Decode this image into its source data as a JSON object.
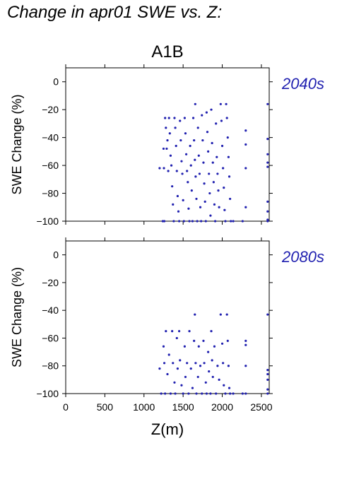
{
  "page": {
    "title": "Change in apr01 SWE vs. Z:"
  },
  "style": {
    "point_color": "#2121b0",
    "label_color": "#2121b0"
  },
  "chart_data": [
    {
      "type": "scatter",
      "scenario": "A1B",
      "period": "2040s",
      "xlabel": "",
      "ylabel": "SWE Change (%)",
      "xlim": [
        0,
        2600
      ],
      "ylim": [
        -100,
        10
      ],
      "x_ticks": [],
      "y_ticks": [
        0,
        -20,
        -40,
        -60,
        -80,
        -100
      ],
      "points": [
        [
          1200,
          -62
        ],
        [
          1240,
          -100
        ],
        [
          1250,
          -48
        ],
        [
          1255,
          -62
        ],
        [
          1260,
          -100
        ],
        [
          1270,
          -26
        ],
        [
          1280,
          -33
        ],
        [
          1290,
          -48
        ],
        [
          1300,
          -42
        ],
        [
          1310,
          -64
        ],
        [
          1320,
          -26
        ],
        [
          1330,
          -37
        ],
        [
          1340,
          -53
        ],
        [
          1350,
          -60
        ],
        [
          1360,
          -75
        ],
        [
          1370,
          -88
        ],
        [
          1380,
          -100
        ],
        [
          1390,
          -26
        ],
        [
          1400,
          -33
        ],
        [
          1410,
          -46
        ],
        [
          1420,
          -64
        ],
        [
          1430,
          -82
        ],
        [
          1440,
          -93
        ],
        [
          1450,
          -100
        ],
        [
          1460,
          -28
        ],
        [
          1470,
          -42
        ],
        [
          1480,
          -57
        ],
        [
          1490,
          -66
        ],
        [
          1500,
          -85
        ],
        [
          1510,
          -100
        ],
        [
          1520,
          -26
        ],
        [
          1530,
          -37
        ],
        [
          1540,
          -52
        ],
        [
          1550,
          -64
        ],
        [
          1560,
          -72
        ],
        [
          1570,
          -91
        ],
        [
          1580,
          -100
        ],
        [
          1590,
          -46
        ],
        [
          1600,
          -60
        ],
        [
          1610,
          -78
        ],
        [
          1620,
          -100
        ],
        [
          1630,
          -26
        ],
        [
          1640,
          -42
        ],
        [
          1650,
          -56
        ],
        [
          1655,
          -16
        ],
        [
          1660,
          -68
        ],
        [
          1670,
          -84
        ],
        [
          1680,
          -100
        ],
        [
          1690,
          -33
        ],
        [
          1700,
          -53
        ],
        [
          1710,
          -66
        ],
        [
          1720,
          -90
        ],
        [
          1730,
          -100
        ],
        [
          1740,
          -24
        ],
        [
          1750,
          -42
        ],
        [
          1760,
          -58
        ],
        [
          1770,
          -73
        ],
        [
          1780,
          -86
        ],
        [
          1790,
          -100
        ],
        [
          1800,
          -22
        ],
        [
          1810,
          -36
        ],
        [
          1820,
          -50
        ],
        [
          1830,
          -66
        ],
        [
          1840,
          -80
        ],
        [
          1850,
          -96
        ],
        [
          1860,
          -20
        ],
        [
          1870,
          -44
        ],
        [
          1880,
          -58
        ],
        [
          1890,
          -72
        ],
        [
          1900,
          -88
        ],
        [
          1910,
          -100
        ],
        [
          1920,
          -30
        ],
        [
          1930,
          -54
        ],
        [
          1940,
          -66
        ],
        [
          1950,
          -78
        ],
        [
          1960,
          -90
        ],
        [
          1980,
          -16
        ],
        [
          1990,
          -28
        ],
        [
          2000,
          -46
        ],
        [
          2010,
          -62
        ],
        [
          2020,
          -76
        ],
        [
          2030,
          -92
        ],
        [
          2040,
          -100
        ],
        [
          2050,
          -16
        ],
        [
          2060,
          -26
        ],
        [
          2070,
          -40
        ],
        [
          2080,
          -54
        ],
        [
          2090,
          -68
        ],
        [
          2100,
          -84
        ],
        [
          2110,
          -100
        ],
        [
          2140,
          -100
        ],
        [
          2260,
          -100
        ],
        [
          2300,
          -35
        ],
        [
          2300,
          -45
        ],
        [
          2300,
          -62
        ],
        [
          2300,
          -90
        ],
        [
          2580,
          -16
        ],
        [
          2580,
          -41
        ],
        [
          2580,
          -52
        ],
        [
          2580,
          -58
        ],
        [
          2580,
          -61
        ],
        [
          2580,
          -86
        ],
        [
          2580,
          -93
        ],
        [
          2580,
          -99
        ],
        [
          2580,
          -100
        ]
      ]
    },
    {
      "type": "scatter",
      "scenario": "",
      "period": "2080s",
      "xlabel": "Z(m)",
      "ylabel": "SWE Change (%)",
      "xlim": [
        0,
        2600
      ],
      "ylim": [
        -100,
        10
      ],
      "x_ticks": [
        0,
        500,
        1000,
        1500,
        2000,
        2500
      ],
      "y_ticks": [
        0,
        -20,
        -40,
        -60,
        -80,
        -100
      ],
      "points": [
        [
          1200,
          -82
        ],
        [
          1220,
          -100
        ],
        [
          1250,
          -66
        ],
        [
          1260,
          -78
        ],
        [
          1270,
          -100
        ],
        [
          1280,
          -55
        ],
        [
          1300,
          -86
        ],
        [
          1320,
          -72
        ],
        [
          1340,
          -100
        ],
        [
          1360,
          -55
        ],
        [
          1370,
          -78
        ],
        [
          1390,
          -92
        ],
        [
          1400,
          -100
        ],
        [
          1420,
          -60
        ],
        [
          1430,
          -82
        ],
        [
          1450,
          -55
        ],
        [
          1460,
          -76
        ],
        [
          1480,
          -94
        ],
        [
          1500,
          -100
        ],
        [
          1520,
          -66
        ],
        [
          1530,
          -88
        ],
        [
          1550,
          -78
        ],
        [
          1570,
          -100
        ],
        [
          1580,
          -55
        ],
        [
          1600,
          -82
        ],
        [
          1620,
          -96
        ],
        [
          1640,
          -62
        ],
        [
          1650,
          -43
        ],
        [
          1660,
          -78
        ],
        [
          1670,
          -100
        ],
        [
          1690,
          -88
        ],
        [
          1700,
          -66
        ],
        [
          1720,
          -80
        ],
        [
          1740,
          -100
        ],
        [
          1760,
          -62
        ],
        [
          1770,
          -78
        ],
        [
          1790,
          -92
        ],
        [
          1800,
          -100
        ],
        [
          1820,
          -70
        ],
        [
          1830,
          -84
        ],
        [
          1850,
          -100
        ],
        [
          1860,
          -55
        ],
        [
          1870,
          -76
        ],
        [
          1880,
          -88
        ],
        [
          1900,
          -66
        ],
        [
          1920,
          -100
        ],
        [
          1940,
          -80
        ],
        [
          1960,
          -90
        ],
        [
          1980,
          -43
        ],
        [
          2000,
          -64
        ],
        [
          2010,
          -78
        ],
        [
          2020,
          -94
        ],
        [
          2040,
          -100
        ],
        [
          2060,
          -43
        ],
        [
          2070,
          -62
        ],
        [
          2080,
          -80
        ],
        [
          2090,
          -96
        ],
        [
          2100,
          -100
        ],
        [
          2140,
          -100
        ],
        [
          2260,
          -100
        ],
        [
          2300,
          -62
        ],
        [
          2300,
          -65
        ],
        [
          2300,
          -80
        ],
        [
          2300,
          -100
        ],
        [
          2580,
          -43
        ],
        [
          2580,
          -83
        ],
        [
          2580,
          -86
        ],
        [
          2580,
          -90
        ],
        [
          2580,
          -97
        ],
        [
          2580,
          -100
        ]
      ]
    }
  ]
}
